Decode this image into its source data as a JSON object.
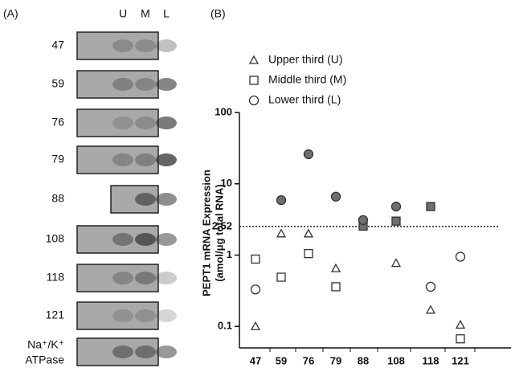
{
  "panel_a": {
    "label": "(A)",
    "lanes": [
      "U",
      "M",
      "L"
    ],
    "rows": [
      "47",
      "59",
      "76",
      "79",
      "88",
      "108",
      "118",
      "121"
    ],
    "control_label": [
      "Na⁺/K⁺",
      "ATPase"
    ]
  },
  "chart_data": {
    "type": "scatter",
    "panel_label": "(B)",
    "y_label": [
      "PEPT1 mRNA Expression",
      "(amol/μg total RNA)"
    ],
    "categories": [
      "47",
      "59",
      "76",
      "79",
      "88",
      "108",
      "118",
      "121"
    ],
    "series": [
      {
        "name": "Upper third (U)",
        "marker": "triangle",
        "color": "#333333",
        "values": [
          0.1,
          2.0,
          2.0,
          0.65,
          null,
          0.77,
          0.17,
          0.105
        ]
      },
      {
        "name": "Middle third (M)",
        "marker": "square",
        "color": "#333333",
        "values": [
          0.88,
          0.49,
          1.05,
          0.36,
          2.55,
          3.0,
          4.8,
          0.067
        ]
      },
      {
        "name": "Lower third (L)",
        "marker": "circle",
        "color": "#333333",
        "values": [
          0.33,
          5.9,
          26,
          6.6,
          3.1,
          4.8,
          0.36,
          0.95
        ]
      }
    ],
    "log_y": true,
    "ylim": [
      0.05,
      100
    ],
    "yticks": [
      0.1,
      1,
      10,
      100
    ],
    "reference_line": {
      "value": 2.52,
      "label": "2.52"
    },
    "filled_above_reference": true,
    "filled_color": "#6e6e6e"
  }
}
